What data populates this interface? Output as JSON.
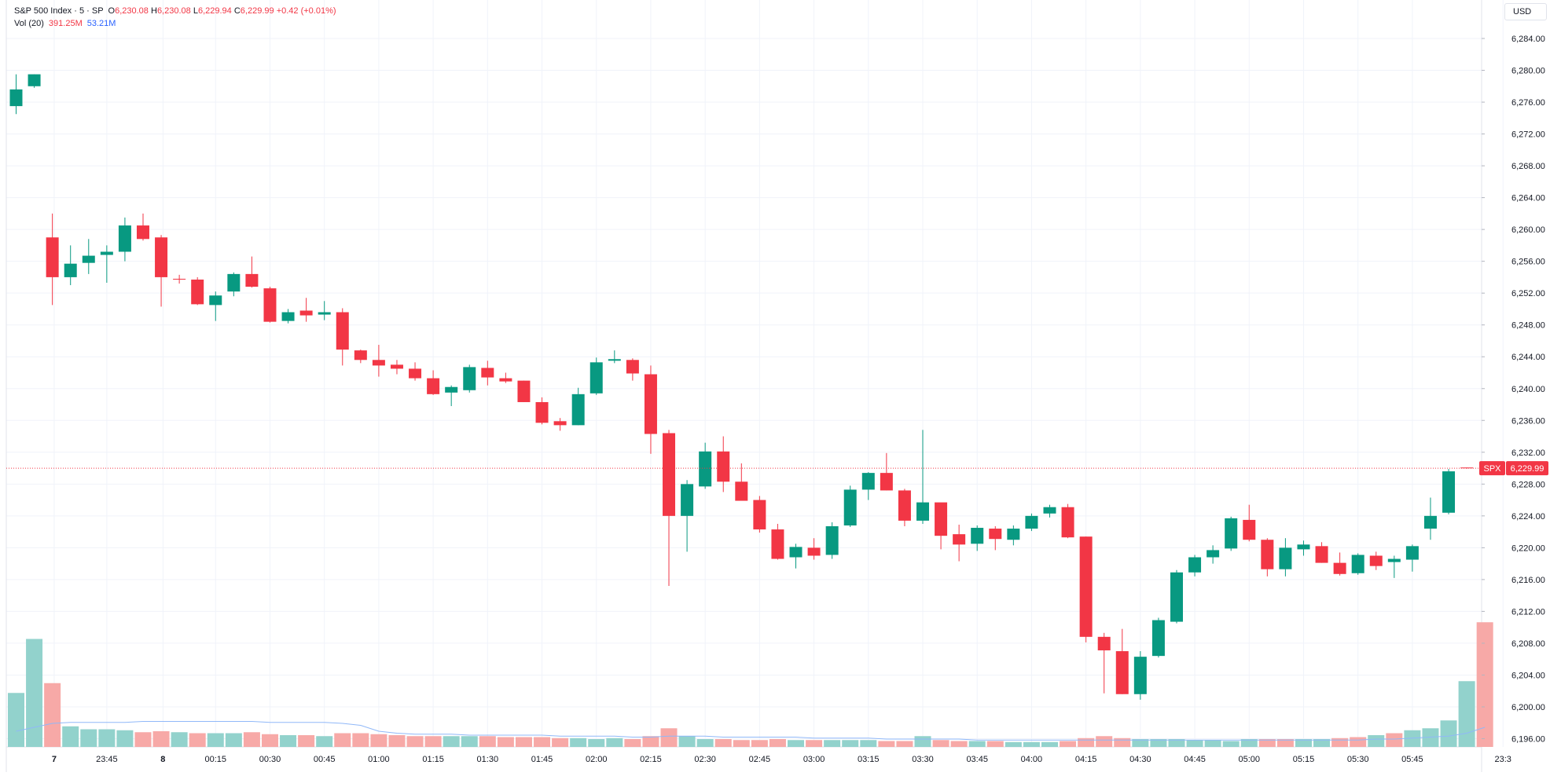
{
  "legend": {
    "title": "S&P 500 Index · 5 · SP",
    "o_label": "O",
    "o_value": "6,230.08",
    "h_label": "H",
    "h_value": "6,230.08",
    "l_label": "L",
    "l_value": "6,229.94",
    "c_label": "C",
    "c_value": "6,229.99",
    "change": "+0.42 (+0.01%)",
    "vol_label": "Vol (20)",
    "vol_value": "391.25M",
    "vol_ma_value": "53.21M"
  },
  "currency": "USD",
  "price_tag": {
    "symbol": "SPX",
    "value": "6,229.99",
    "price": 6229.99
  },
  "colors": {
    "up": "#089981",
    "down": "#f23645",
    "up_volume": "#92d2cc",
    "down_volume": "#f7a9a7",
    "volume_ma": "#90b8f8",
    "grid": "#f0f3fa",
    "text": "#131722"
  },
  "chart_data": {
    "type": "candlestick",
    "interval": "5",
    "y_axis": {
      "ylim": [
        6193,
        6287
      ],
      "ticks": [
        6196,
        6200,
        6204,
        6208,
        6212,
        6216,
        6220,
        6224,
        6228,
        6232,
        6236,
        6240,
        6244,
        6248,
        6252,
        6256,
        6260,
        6264,
        6268,
        6272,
        6276,
        6280,
        6284
      ],
      "tick_labels": [
        "6,196.00",
        "6,200.00",
        "6,204.00",
        "6,208.00",
        "6,212.00",
        "6,216.00",
        "6,220.00",
        "6,224.00",
        "6,228.00",
        "6,232.00",
        "6,236.00",
        "6,240.00",
        "6,244.00",
        "6,248.00",
        "6,252.00",
        "6,256.00",
        "6,260.00",
        "6,264.00",
        "6,268.00",
        "6,272.00",
        "6,276.00",
        "6,280.00",
        "6,284.00"
      ]
    },
    "x_axis": {
      "labels": [
        {
          "label": "7",
          "index": 2.1,
          "bold": true
        },
        {
          "label": "23:45",
          "index": 5
        },
        {
          "label": "8",
          "index": 8.1,
          "bold": true
        },
        {
          "label": "00:15",
          "index": 11
        },
        {
          "label": "00:30",
          "index": 14
        },
        {
          "label": "00:45",
          "index": 17
        },
        {
          "label": "01:00",
          "index": 20
        },
        {
          "label": "01:15",
          "index": 23
        },
        {
          "label": "01:30",
          "index": 26
        },
        {
          "label": "01:45",
          "index": 29
        },
        {
          "label": "02:00",
          "index": 32
        },
        {
          "label": "02:15",
          "index": 35
        },
        {
          "label": "02:30",
          "index": 38
        },
        {
          "label": "02:45",
          "index": 41
        },
        {
          "label": "03:00",
          "index": 44
        },
        {
          "label": "03:15",
          "index": 47
        },
        {
          "label": "03:30",
          "index": 50
        },
        {
          "label": "03:45",
          "index": 53
        },
        {
          "label": "04:00",
          "index": 56
        },
        {
          "label": "04:15",
          "index": 59
        },
        {
          "label": "04:30",
          "index": 62
        },
        {
          "label": "04:45",
          "index": 65
        },
        {
          "label": "05:00",
          "index": 68
        },
        {
          "label": "05:15",
          "index": 71
        },
        {
          "label": "05:30",
          "index": 74
        },
        {
          "label": "05:45",
          "index": 77
        },
        {
          "label": "23:3",
          "index": 82
        }
      ]
    },
    "candles": [
      {
        "o": 6275.5,
        "h": 6279.5,
        "l": 6274.5,
        "c": 6277.6
      },
      {
        "o": 6278.0,
        "h": 6279.5,
        "l": 6277.8,
        "c": 6279.5
      },
      {
        "o": 6259.0,
        "h": 6262.0,
        "l": 6250.5,
        "c": 6254.0
      },
      {
        "o": 6254.0,
        "h": 6258.0,
        "l": 6253.0,
        "c": 6255.7
      },
      {
        "o": 6255.8,
        "h": 6258.8,
        "l": 6254.4,
        "c": 6256.7
      },
      {
        "o": 6256.8,
        "h": 6258.0,
        "l": 6253.3,
        "c": 6257.2
      },
      {
        "o": 6257.2,
        "h": 6261.5,
        "l": 6256.0,
        "c": 6260.5
      },
      {
        "o": 6260.5,
        "h": 6262.0,
        "l": 6258.6,
        "c": 6258.8
      },
      {
        "o": 6259.0,
        "h": 6259.3,
        "l": 6250.3,
        "c": 6254.0
      },
      {
        "o": 6253.8,
        "h": 6254.3,
        "l": 6253.2,
        "c": 6253.7
      },
      {
        "o": 6253.7,
        "h": 6254.0,
        "l": 6250.5,
        "c": 6250.6
      },
      {
        "o": 6250.5,
        "h": 6252.2,
        "l": 6248.5,
        "c": 6251.7
      },
      {
        "o": 6252.2,
        "h": 6254.6,
        "l": 6251.6,
        "c": 6254.4
      },
      {
        "o": 6254.4,
        "h": 6256.6,
        "l": 6252.7,
        "c": 6252.8
      },
      {
        "o": 6252.6,
        "h": 6252.8,
        "l": 6248.3,
        "c": 6248.4
      },
      {
        "o": 6248.5,
        "h": 6250.0,
        "l": 6248.2,
        "c": 6249.6
      },
      {
        "o": 6249.8,
        "h": 6251.4,
        "l": 6248.4,
        "c": 6249.2
      },
      {
        "o": 6249.3,
        "h": 6251.0,
        "l": 6248.6,
        "c": 6249.6
      },
      {
        "o": 6249.6,
        "h": 6250.1,
        "l": 6242.9,
        "c": 6244.9
      },
      {
        "o": 6244.8,
        "h": 6244.9,
        "l": 6243.2,
        "c": 6243.6
      },
      {
        "o": 6243.6,
        "h": 6245.5,
        "l": 6241.5,
        "c": 6242.9
      },
      {
        "o": 6243.0,
        "h": 6243.6,
        "l": 6241.8,
        "c": 6242.5
      },
      {
        "o": 6242.5,
        "h": 6243.3,
        "l": 6241.0,
        "c": 6241.3
      },
      {
        "o": 6241.3,
        "h": 6242.3,
        "l": 6239.2,
        "c": 6239.3
      },
      {
        "o": 6239.5,
        "h": 6240.4,
        "l": 6237.8,
        "c": 6240.2
      },
      {
        "o": 6239.8,
        "h": 6243.0,
        "l": 6239.5,
        "c": 6242.7
      },
      {
        "o": 6242.6,
        "h": 6243.5,
        "l": 6240.4,
        "c": 6241.4
      },
      {
        "o": 6241.3,
        "h": 6242.0,
        "l": 6240.7,
        "c": 6240.9
      },
      {
        "o": 6241.0,
        "h": 6241.0,
        "l": 6238.3,
        "c": 6238.3
      },
      {
        "o": 6238.3,
        "h": 6238.9,
        "l": 6235.5,
        "c": 6235.7
      },
      {
        "o": 6235.9,
        "h": 6236.3,
        "l": 6234.7,
        "c": 6235.4
      },
      {
        "o": 6235.4,
        "h": 6240.1,
        "l": 6235.4,
        "c": 6239.3
      },
      {
        "o": 6239.4,
        "h": 6243.9,
        "l": 6239.2,
        "c": 6243.3
      },
      {
        "o": 6243.5,
        "h": 6244.8,
        "l": 6243.2,
        "c": 6243.7
      },
      {
        "o": 6243.6,
        "h": 6243.8,
        "l": 6241.0,
        "c": 6241.9
      },
      {
        "o": 6241.8,
        "h": 6242.9,
        "l": 6231.8,
        "c": 6234.3
      },
      {
        "o": 6234.4,
        "h": 6234.8,
        "l": 6215.2,
        "c": 6224.0
      },
      {
        "o": 6224.0,
        "h": 6228.5,
        "l": 6219.5,
        "c": 6228.0
      },
      {
        "o": 6227.7,
        "h": 6233.2,
        "l": 6227.4,
        "c": 6232.1
      },
      {
        "o": 6232.1,
        "h": 6234.0,
        "l": 6227.0,
        "c": 6228.3
      },
      {
        "o": 6228.3,
        "h": 6230.6,
        "l": 6226.3,
        "c": 6225.9
      },
      {
        "o": 6226.0,
        "h": 6226.5,
        "l": 6221.9,
        "c": 6222.3
      },
      {
        "o": 6222.3,
        "h": 6223.0,
        "l": 6218.5,
        "c": 6218.6
      },
      {
        "o": 6218.8,
        "h": 6220.5,
        "l": 6217.4,
        "c": 6220.1
      },
      {
        "o": 6220.0,
        "h": 6221.2,
        "l": 6218.5,
        "c": 6219.0
      },
      {
        "o": 6219.1,
        "h": 6223.2,
        "l": 6218.6,
        "c": 6222.7
      },
      {
        "o": 6222.8,
        "h": 6227.8,
        "l": 6222.6,
        "c": 6227.3
      },
      {
        "o": 6227.3,
        "h": 6229.5,
        "l": 6226.0,
        "c": 6229.4
      },
      {
        "o": 6229.4,
        "h": 6231.9,
        "l": 6227.2,
        "c": 6227.2
      },
      {
        "o": 6227.2,
        "h": 6227.4,
        "l": 6222.7,
        "c": 6223.4
      },
      {
        "o": 6223.4,
        "h": 6234.8,
        "l": 6223.0,
        "c": 6225.7
      },
      {
        "o": 6225.7,
        "h": 6225.6,
        "l": 6219.8,
        "c": 6221.5
      },
      {
        "o": 6221.7,
        "h": 6222.9,
        "l": 6218.3,
        "c": 6220.4
      },
      {
        "o": 6220.5,
        "h": 6222.8,
        "l": 6219.6,
        "c": 6222.5
      },
      {
        "o": 6222.4,
        "h": 6222.7,
        "l": 6219.7,
        "c": 6221.1
      },
      {
        "o": 6221.0,
        "h": 6222.8,
        "l": 6220.3,
        "c": 6222.4
      },
      {
        "o": 6222.4,
        "h": 6224.3,
        "l": 6222.1,
        "c": 6224.0
      },
      {
        "o": 6224.3,
        "h": 6225.4,
        "l": 6223.8,
        "c": 6225.1
      },
      {
        "o": 6225.1,
        "h": 6225.5,
        "l": 6221.2,
        "c": 6221.3
      },
      {
        "o": 6221.4,
        "h": 6221.4,
        "l": 6208.1,
        "c": 6208.8
      },
      {
        "o": 6208.8,
        "h": 6209.3,
        "l": 6201.7,
        "c": 6207.1
      },
      {
        "o": 6207.0,
        "h": 6209.8,
        "l": 6201.6,
        "c": 6201.6
      },
      {
        "o": 6201.6,
        "h": 6207.0,
        "l": 6200.9,
        "c": 6206.3
      },
      {
        "o": 6206.4,
        "h": 6211.2,
        "l": 6206.2,
        "c": 6210.9
      },
      {
        "o": 6210.7,
        "h": 6217.2,
        "l": 6210.5,
        "c": 6216.9
      },
      {
        "o": 6216.9,
        "h": 6219.1,
        "l": 6216.4,
        "c": 6218.8
      },
      {
        "o": 6218.8,
        "h": 6220.3,
        "l": 6218.0,
        "c": 6219.7
      },
      {
        "o": 6219.9,
        "h": 6223.9,
        "l": 6219.6,
        "c": 6223.7
      },
      {
        "o": 6223.5,
        "h": 6225.4,
        "l": 6220.8,
        "c": 6221.0
      },
      {
        "o": 6221.0,
        "h": 6221.2,
        "l": 6216.4,
        "c": 6217.3
      },
      {
        "o": 6217.3,
        "h": 6221.2,
        "l": 6216.4,
        "c": 6220.0
      },
      {
        "o": 6219.8,
        "h": 6220.9,
        "l": 6219.0,
        "c": 6220.4
      },
      {
        "o": 6220.2,
        "h": 6220.7,
        "l": 6218.1,
        "c": 6218.1
      },
      {
        "o": 6218.1,
        "h": 6219.4,
        "l": 6216.5,
        "c": 6216.7
      },
      {
        "o": 6216.8,
        "h": 6219.3,
        "l": 6216.6,
        "c": 6219.1
      },
      {
        "o": 6219.0,
        "h": 6219.5,
        "l": 6217.2,
        "c": 6217.7
      },
      {
        "o": 6218.2,
        "h": 6219.0,
        "l": 6216.2,
        "c": 6218.6
      },
      {
        "o": 6218.5,
        "h": 6220.4,
        "l": 6217.0,
        "c": 6220.2
      },
      {
        "o": 6222.4,
        "h": 6226.3,
        "l": 6221.0,
        "c": 6224.0
      },
      {
        "o": 6224.4,
        "h": 6229.9,
        "l": 6224.2,
        "c": 6229.6
      },
      {
        "o": 6230.08,
        "h": 6230.08,
        "l": 6229.94,
        "c": 6229.99
      }
    ],
    "volume": [
      {
        "v": 0.55,
        "up": true
      },
      {
        "v": 1.1,
        "up": true
      },
      {
        "v": 0.65,
        "up": false
      },
      {
        "v": 0.21,
        "up": true
      },
      {
        "v": 0.18,
        "up": true
      },
      {
        "v": 0.18,
        "up": true
      },
      {
        "v": 0.17,
        "up": true
      },
      {
        "v": 0.15,
        "up": false
      },
      {
        "v": 0.16,
        "up": false
      },
      {
        "v": 0.15,
        "up": true
      },
      {
        "v": 0.14,
        "up": false
      },
      {
        "v": 0.14,
        "up": true
      },
      {
        "v": 0.14,
        "up": true
      },
      {
        "v": 0.15,
        "up": false
      },
      {
        "v": 0.13,
        "up": false
      },
      {
        "v": 0.12,
        "up": true
      },
      {
        "v": 0.12,
        "up": false
      },
      {
        "v": 0.11,
        "up": true
      },
      {
        "v": 0.14,
        "up": false
      },
      {
        "v": 0.14,
        "up": false
      },
      {
        "v": 0.13,
        "up": false
      },
      {
        "v": 0.12,
        "up": false
      },
      {
        "v": 0.11,
        "up": false
      },
      {
        "v": 0.11,
        "up": false
      },
      {
        "v": 0.11,
        "up": true
      },
      {
        "v": 0.11,
        "up": true
      },
      {
        "v": 0.11,
        "up": false
      },
      {
        "v": 0.1,
        "up": false
      },
      {
        "v": 0.1,
        "up": false
      },
      {
        "v": 0.1,
        "up": false
      },
      {
        "v": 0.09,
        "up": false
      },
      {
        "v": 0.09,
        "up": true
      },
      {
        "v": 0.08,
        "up": true
      },
      {
        "v": 0.09,
        "up": true
      },
      {
        "v": 0.08,
        "up": false
      },
      {
        "v": 0.11,
        "up": false
      },
      {
        "v": 0.19,
        "up": false
      },
      {
        "v": 0.11,
        "up": true
      },
      {
        "v": 0.08,
        "up": true
      },
      {
        "v": 0.08,
        "up": false
      },
      {
        "v": 0.07,
        "up": false
      },
      {
        "v": 0.07,
        "up": false
      },
      {
        "v": 0.08,
        "up": false
      },
      {
        "v": 0.07,
        "up": true
      },
      {
        "v": 0.07,
        "up": false
      },
      {
        "v": 0.07,
        "up": true
      },
      {
        "v": 0.07,
        "up": true
      },
      {
        "v": 0.07,
        "up": true
      },
      {
        "v": 0.06,
        "up": false
      },
      {
        "v": 0.06,
        "up": false
      },
      {
        "v": 0.11,
        "up": true
      },
      {
        "v": 0.07,
        "up": false
      },
      {
        "v": 0.06,
        "up": false
      },
      {
        "v": 0.06,
        "up": true
      },
      {
        "v": 0.06,
        "up": false
      },
      {
        "v": 0.05,
        "up": true
      },
      {
        "v": 0.05,
        "up": true
      },
      {
        "v": 0.05,
        "up": true
      },
      {
        "v": 0.06,
        "up": false
      },
      {
        "v": 0.09,
        "up": false
      },
      {
        "v": 0.11,
        "up": false
      },
      {
        "v": 0.09,
        "up": false
      },
      {
        "v": 0.08,
        "up": true
      },
      {
        "v": 0.08,
        "up": true
      },
      {
        "v": 0.08,
        "up": true
      },
      {
        "v": 0.07,
        "up": true
      },
      {
        "v": 0.07,
        "up": true
      },
      {
        "v": 0.06,
        "up": true
      },
      {
        "v": 0.08,
        "up": true
      },
      {
        "v": 0.08,
        "up": false
      },
      {
        "v": 0.08,
        "up": false
      },
      {
        "v": 0.08,
        "up": true
      },
      {
        "v": 0.08,
        "up": true
      },
      {
        "v": 0.09,
        "up": false
      },
      {
        "v": 0.1,
        "up": false
      },
      {
        "v": 0.12,
        "up": true
      },
      {
        "v": 0.14,
        "up": false
      },
      {
        "v": 0.17,
        "up": true
      },
      {
        "v": 0.19,
        "up": true
      },
      {
        "v": 0.27,
        "up": true
      },
      {
        "v": 0.67,
        "up": true
      },
      {
        "v": 1.27,
        "up": false
      }
    ],
    "volume_ma": [
      0.16,
      0.2,
      0.24,
      0.25,
      0.25,
      0.25,
      0.25,
      0.26,
      0.26,
      0.26,
      0.26,
      0.26,
      0.26,
      0.26,
      0.25,
      0.25,
      0.25,
      0.25,
      0.24,
      0.22,
      0.16,
      0.14,
      0.13,
      0.13,
      0.13,
      0.12,
      0.12,
      0.12,
      0.12,
      0.12,
      0.11,
      0.11,
      0.11,
      0.11,
      0.1,
      0.1,
      0.11,
      0.11,
      0.11,
      0.1,
      0.1,
      0.1,
      0.1,
      0.1,
      0.09,
      0.09,
      0.09,
      0.09,
      0.08,
      0.08,
      0.08,
      0.08,
      0.08,
      0.07,
      0.07,
      0.07,
      0.07,
      0.07,
      0.07,
      0.07,
      0.07,
      0.07,
      0.07,
      0.07,
      0.07,
      0.07,
      0.07,
      0.07,
      0.07,
      0.07,
      0.07,
      0.07,
      0.07,
      0.07,
      0.07,
      0.08,
      0.08,
      0.09,
      0.1,
      0.11,
      0.14,
      0.2
    ]
  }
}
